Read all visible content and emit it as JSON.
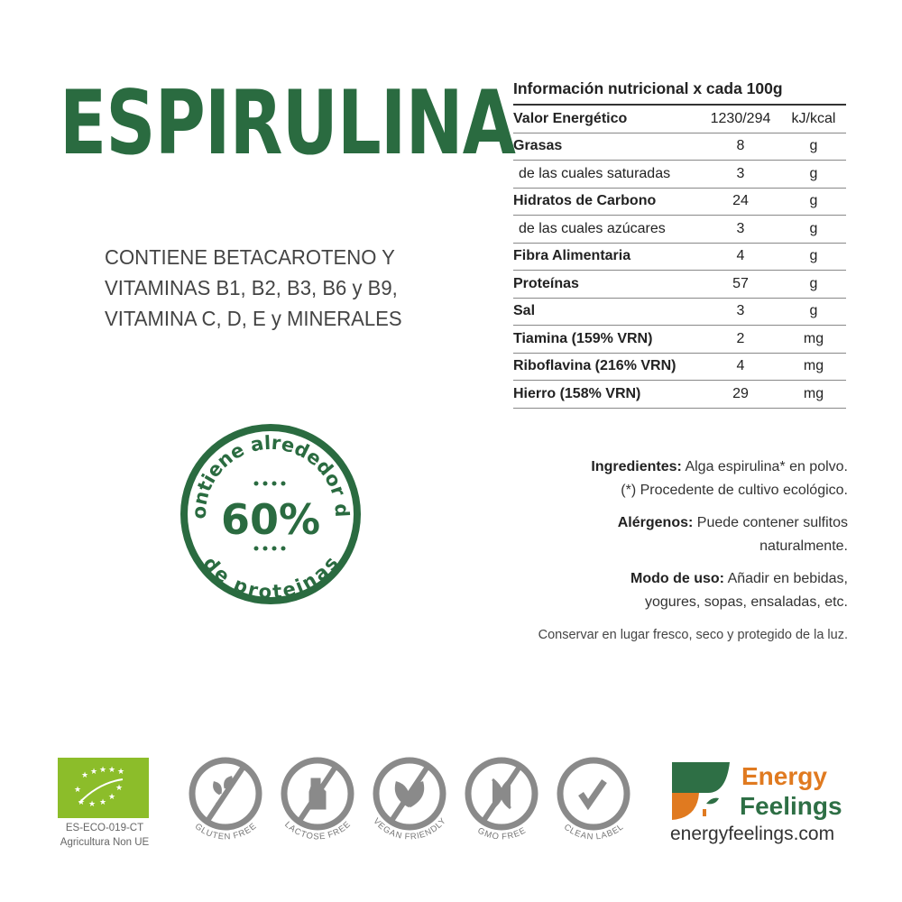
{
  "product": {
    "title": "ESPIRULINA",
    "claims": [
      "CONTIENE BETACAROTENO Y",
      "VITAMINAS B1, B2, B3, B6 y B9,",
      "VITAMINA C, D, E y MINERALES"
    ]
  },
  "badge": {
    "top_arc": "contiene alrededor de",
    "value": "60%",
    "bottom_arc": "de proteinas",
    "color": "#2a6b40"
  },
  "nutrition": {
    "title": "Información nutricional x cada 100g",
    "rows": [
      {
        "name": "Valor Energético",
        "value": "1230/294",
        "unit": "kJ/kcal",
        "bold": true
      },
      {
        "name": "Grasas",
        "value": "8",
        "unit": "g",
        "bold": true
      },
      {
        "name": "de las cuales saturadas",
        "value": "3",
        "unit": "g",
        "bold": false
      },
      {
        "name": "Hidratos de Carbono",
        "value": "24",
        "unit": "g",
        "bold": true
      },
      {
        "name": "de las cuales azúcares",
        "value": "3",
        "unit": "g",
        "bold": false
      },
      {
        "name": "Fibra Alimentaria",
        "value": "4",
        "unit": "g",
        "bold": true
      },
      {
        "name": "Proteínas",
        "value": "57",
        "unit": "g",
        "bold": true
      },
      {
        "name": "Sal",
        "value": "3",
        "unit": "g",
        "bold": true
      },
      {
        "name": "Tiamina (159% VRN)",
        "value": "2",
        "unit": "mg",
        "bold": true
      },
      {
        "name": "Riboflavina (216% VRN)",
        "value": "4",
        "unit": "mg",
        "bold": true
      },
      {
        "name": "Hierro (158% VRN)",
        "value": "29",
        "unit": "mg",
        "bold": true
      }
    ]
  },
  "info": {
    "ingredients_label": "Ingredientes:",
    "ingredients": " Alga espirulina* en polvo.",
    "ingredients_note": "(*) Procedente de cultivo ecológico.",
    "allergens_label": "Alérgenos:",
    "allergens": " Puede contener sulfitos naturalmente.",
    "usage_label": "Modo de uso:",
    "usage": " Añadir en bebidas, yogures, sopas, ensaladas, etc.",
    "storage": "Conservar en lugar fresco, seco y protegido de la luz."
  },
  "certification": {
    "code": "ES-ECO-019-CT",
    "origin": "Agricultura Non UE",
    "color": "#8cbd2a"
  },
  "icons": [
    {
      "label": "GLUTEN FREE",
      "icon": "wheat-icon"
    },
    {
      "label": "LACTOSE FREE",
      "icon": "milk-bottle-icon"
    },
    {
      "label": "VEGAN FRIENDLY",
      "icon": "leaves-icon"
    },
    {
      "label": "GMO FREE",
      "icon": "dna-icon"
    },
    {
      "label": "CLEAN LABEL",
      "icon": "check-leaf-icon"
    }
  ],
  "brand": {
    "line1": "Energy",
    "line2": "Feelings",
    "url": "energyfeelings.com",
    "orange": "#e07a20",
    "green": "#2e6f45"
  }
}
